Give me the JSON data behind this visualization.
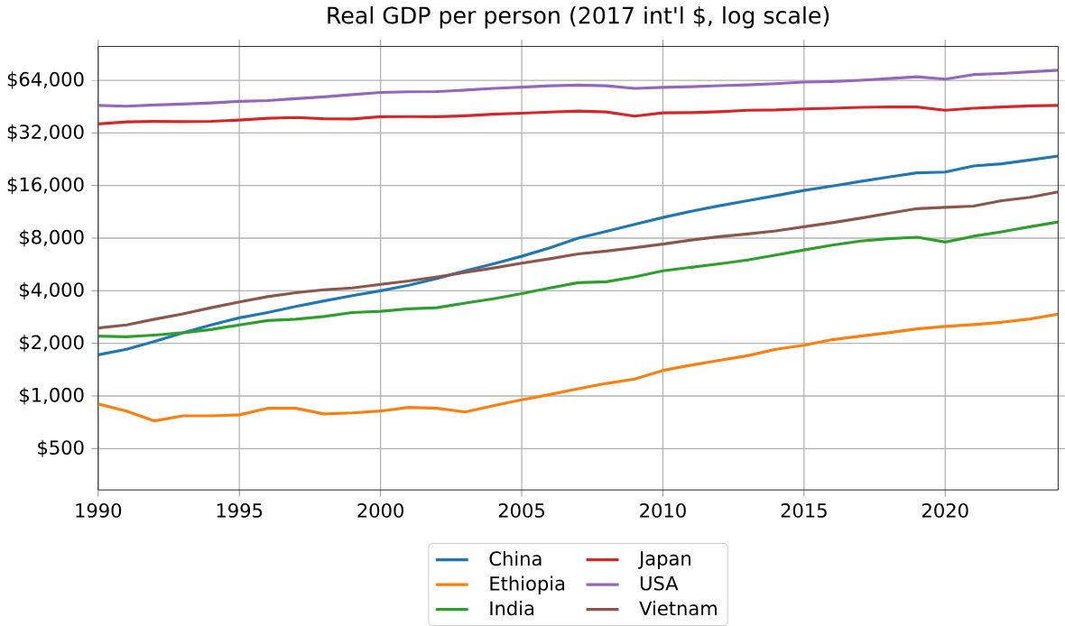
{
  "chart_data": {
    "type": "line",
    "title": "Real GDP per person (2017 int'l $, log scale)",
    "x": [
      1990,
      1991,
      1992,
      1993,
      1994,
      1995,
      1996,
      1997,
      1998,
      1999,
      2000,
      2001,
      2002,
      2003,
      2004,
      2005,
      2006,
      2007,
      2008,
      2009,
      2010,
      2011,
      2012,
      2013,
      2014,
      2015,
      2016,
      2017,
      2018,
      2019,
      2020,
      2021,
      2022,
      2023,
      2024
    ],
    "series": [
      {
        "name": "China",
        "color": "#1f77b4",
        "values": [
          1720,
          1850,
          2050,
          2300,
          2550,
          2800,
          3000,
          3250,
          3500,
          3750,
          4000,
          4300,
          4700,
          5200,
          5700,
          6300,
          7050,
          8000,
          8750,
          9600,
          10500,
          11400,
          12250,
          13100,
          14000,
          15000,
          15900,
          16900,
          17900,
          18900,
          19100,
          20700,
          21300,
          22400,
          23600
        ]
      },
      {
        "name": "Ethiopia",
        "color": "#ff7f0e",
        "values": [
          900,
          820,
          720,
          770,
          770,
          780,
          850,
          850,
          790,
          800,
          820,
          860,
          850,
          810,
          880,
          950,
          1020,
          1100,
          1180,
          1250,
          1400,
          1500,
          1600,
          1700,
          1850,
          1950,
          2100,
          2200,
          2300,
          2420,
          2500,
          2560,
          2640,
          2760,
          2940
        ]
      },
      {
        "name": "India",
        "color": "#2ca02c",
        "values": [
          2200,
          2180,
          2230,
          2300,
          2400,
          2550,
          2700,
          2750,
          2850,
          3000,
          3050,
          3150,
          3200,
          3400,
          3600,
          3850,
          4150,
          4450,
          4500,
          4800,
          5200,
          5450,
          5700,
          6000,
          6400,
          6850,
          7300,
          7700,
          7950,
          8100,
          7600,
          8200,
          8700,
          9300,
          9900
        ]
      },
      {
        "name": "Japan",
        "color": "#d62728",
        "values": [
          36000,
          37000,
          37200,
          37100,
          37300,
          37900,
          38800,
          39200,
          38600,
          38500,
          39600,
          39700,
          39600,
          40100,
          40900,
          41500,
          42100,
          42700,
          42200,
          39900,
          41700,
          41800,
          42300,
          43100,
          43300,
          43900,
          44300,
          44800,
          45100,
          45000,
          43100,
          44300,
          45000,
          45700,
          46000
        ]
      },
      {
        "name": "USA",
        "color": "#9467bd",
        "values": [
          46000,
          45500,
          46200,
          46800,
          47500,
          48500,
          49000,
          50200,
          51500,
          53000,
          54500,
          55000,
          55200,
          56200,
          57500,
          58500,
          59500,
          60000,
          59500,
          57500,
          58300,
          58800,
          59600,
          60200,
          61200,
          62500,
          63000,
          64000,
          65500,
          67000,
          65000,
          69000,
          70000,
          71500,
          73000
        ]
      },
      {
        "name": "Vietnam",
        "color": "#8c564b",
        "values": [
          2450,
          2550,
          2750,
          2950,
          3200,
          3450,
          3700,
          3900,
          4050,
          4150,
          4350,
          4550,
          4800,
          5100,
          5400,
          5750,
          6100,
          6500,
          6750,
          7050,
          7400,
          7800,
          8150,
          8450,
          8800,
          9300,
          9800,
          10400,
          11100,
          11800,
          12000,
          12200,
          13100,
          13700,
          14700
        ]
      }
    ],
    "xlim": [
      1990,
      2024
    ],
    "ylim": [
      290,
      100000
    ],
    "log": "y",
    "xticks": [
      1990,
      1995,
      2000,
      2005,
      2010,
      2015,
      2020
    ],
    "yticks": [
      {
        "value": 500,
        "label": "$500"
      },
      {
        "value": 1000,
        "label": "$1,000"
      },
      {
        "value": 2000,
        "label": "$2,000"
      },
      {
        "value": 4000,
        "label": "$4,000"
      },
      {
        "value": 8000,
        "label": "$8,000"
      },
      {
        "value": 16000,
        "label": "$16,000"
      },
      {
        "value": 32000,
        "label": "$32,000"
      },
      {
        "value": 64000,
        "label": "$64,000"
      }
    ],
    "grid": true,
    "legend": "bottom",
    "line_style": "solid",
    "marker": "none"
  }
}
